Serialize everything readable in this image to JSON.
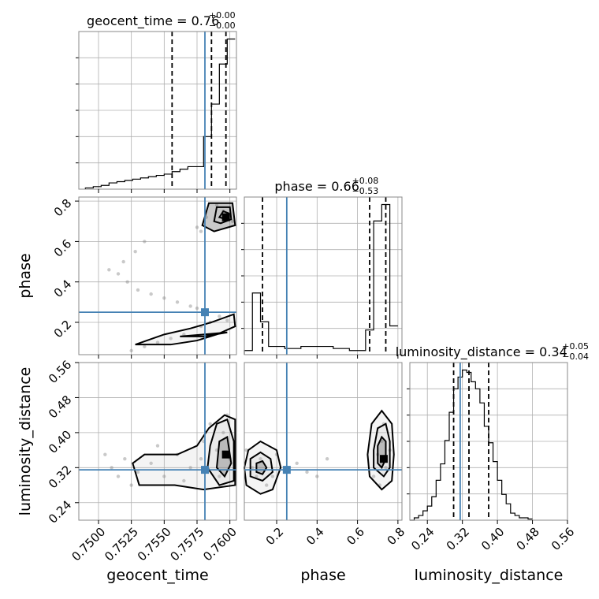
{
  "chart_data": {
    "type": "corner",
    "parameters": [
      "geocent_time",
      "phase",
      "luminosity_distance"
    ],
    "truths": [
      0.7581,
      0.25,
      0.315
    ],
    "truth_color": "#4682b4",
    "titles": [
      {
        "param": "geocent_time",
        "prefix": "geocent_time = 0.76",
        "plus": "+0.00",
        "minus": "−0.00"
      },
      {
        "param": "phase",
        "prefix": "phase = 0.66",
        "plus": "+0.08",
        "minus": "−0.53"
      },
      {
        "param": "luminosity_distance",
        "prefix": "luminosity_distance = 0.34",
        "plus": "+0.05",
        "minus": "−0.04"
      }
    ],
    "axes": {
      "geocent_time": {
        "range": [
          0.7485,
          0.7605
        ],
        "ticks": [
          "0.7500",
          "0.7525",
          "0.7550",
          "0.7575",
          "0.7600"
        ],
        "tick_values": [
          0.75,
          0.7525,
          0.755,
          0.7575,
          0.76
        ],
        "label": "geocent_time"
      },
      "phase": {
        "range": [
          0.04,
          0.82
        ],
        "ticks": [
          "0.2",
          "0.4",
          "0.6",
          "0.8"
        ],
        "tick_values": [
          0.2,
          0.4,
          0.6,
          0.8
        ],
        "label": "phase"
      },
      "luminosity_distance": {
        "range": [
          0.2,
          0.56
        ],
        "ticks": [
          "0.24",
          "0.32",
          "0.40",
          "0.48",
          "0.56"
        ],
        "tick_values": [
          0.24,
          0.32,
          0.4,
          0.48,
          0.56
        ],
        "label": "luminosity_distance"
      }
    },
    "histograms": {
      "geocent_time": {
        "edges": [
          0.749,
          0.7496,
          0.7502,
          0.7508,
          0.7514,
          0.752,
          0.7526,
          0.7532,
          0.7538,
          0.7544,
          0.755,
          0.7556,
          0.7562,
          0.7568,
          0.7574,
          0.758,
          0.7586,
          0.7592,
          0.7598,
          0.7604
        ],
        "counts": [
          0.5,
          1,
          1.5,
          2.5,
          3,
          3.5,
          4,
          4.5,
          5,
          5.5,
          6,
          7,
          8,
          9,
          9,
          21,
          34,
          50,
          60
        ],
        "quantiles": [
          0.7556,
          0.7586,
          0.7597
        ]
      },
      "phase": {
        "edges": [
          0.04,
          0.08,
          0.12,
          0.16,
          0.2,
          0.24,
          0.28,
          0.32,
          0.36,
          0.4,
          0.44,
          0.48,
          0.52,
          0.56,
          0.6,
          0.64,
          0.68,
          0.72,
          0.76,
          0.8
        ],
        "counts": [
          2,
          30,
          16,
          4,
          4,
          3,
          3,
          4,
          4,
          4,
          4,
          3,
          3,
          2,
          2,
          12,
          65,
          73,
          14
        ],
        "quantiles": [
          0.13,
          0.66,
          0.74
        ]
      },
      "luminosity_distance": {
        "edges": [
          0.2,
          0.21,
          0.22,
          0.23,
          0.24,
          0.25,
          0.26,
          0.27,
          0.28,
          0.29,
          0.3,
          0.31,
          0.32,
          0.33,
          0.34,
          0.35,
          0.36,
          0.37,
          0.38,
          0.39,
          0.4,
          0.41,
          0.42,
          0.43,
          0.44,
          0.45,
          0.46,
          0.47,
          0.48
        ],
        "counts": [
          0,
          1,
          2,
          4,
          6,
          10,
          17,
          24,
          34,
          46,
          56,
          61,
          64,
          63,
          59,
          56,
          50,
          40,
          33,
          25,
          17,
          11,
          7,
          3,
          2,
          1,
          1,
          0.5
        ],
        "quantiles": [
          0.3,
          0.335,
          0.38
        ]
      }
    },
    "joint": [
      {
        "x": "geocent_time",
        "y": "phase",
        "points": [
          [
            0.7515,
            0.44
          ],
          [
            0.7508,
            0.46
          ],
          [
            0.7522,
            0.4
          ],
          [
            0.753,
            0.36
          ],
          [
            0.754,
            0.34
          ],
          [
            0.755,
            0.32
          ],
          [
            0.756,
            0.3
          ],
          [
            0.757,
            0.28
          ],
          [
            0.7575,
            0.27
          ],
          [
            0.7535,
            0.08
          ],
          [
            0.7545,
            0.1
          ],
          [
            0.7555,
            0.12
          ],
          [
            0.7565,
            0.14
          ],
          [
            0.7578,
            0.18
          ],
          [
            0.7585,
            0.2
          ],
          [
            0.7578,
            0.65
          ],
          [
            0.7575,
            0.67
          ],
          [
            0.7582,
            0.72
          ],
          [
            0.759,
            0.78
          ],
          [
            0.7595,
            0.75
          ],
          [
            0.7598,
            0.72
          ],
          [
            0.7602,
            0.7
          ],
          [
            0.7592,
            0.23
          ],
          [
            0.7598,
            0.21
          ],
          [
            0.7525,
            0.06
          ],
          [
            0.7519,
            0.5
          ],
          [
            0.7528,
            0.55
          ],
          [
            0.7535,
            0.6
          ]
        ],
        "contours": [
          [
            [
              0.7528,
              0.09
            ],
            [
              0.755,
              0.14
            ],
            [
              0.757,
              0.17
            ],
            [
              0.7586,
              0.2
            ],
            [
              0.7603,
              0.24
            ],
            [
              0.7604,
              0.18
            ],
            [
              0.759,
              0.14
            ],
            [
              0.7575,
              0.11
            ],
            [
              0.7555,
              0.09
            ],
            [
              0.7528,
              0.09
            ]
          ],
          [
            [
              0.7562,
              0.13
            ],
            [
              0.758,
              0.14
            ],
            [
              0.7598,
              0.15
            ],
            [
              0.758,
              0.13
            ],
            [
              0.7562,
              0.13
            ]
          ],
          [
            [
              0.7579,
              0.68
            ],
            [
              0.7584,
              0.79
            ],
            [
              0.7602,
              0.79
            ],
            [
              0.7604,
              0.68
            ],
            [
              0.7588,
              0.65
            ],
            [
              0.7579,
              0.68
            ]
          ],
          [
            [
              0.7588,
              0.7
            ],
            [
              0.759,
              0.77
            ],
            [
              0.76,
              0.77
            ],
            [
              0.7601,
              0.71
            ],
            [
              0.7593,
              0.69
            ],
            [
              0.7588,
              0.7
            ]
          ],
          [
            [
              0.7592,
              0.72
            ],
            [
              0.7595,
              0.75
            ],
            [
              0.7599,
              0.74
            ],
            [
              0.7597,
              0.71
            ],
            [
              0.7592,
              0.72
            ]
          ]
        ],
        "peak": [
          [
            0.7597,
            0.72
          ]
        ]
      },
      {
        "x": "geocent_time",
        "y": "luminosity_distance",
        "points": [
          [
            0.751,
            0.32
          ],
          [
            0.7515,
            0.3
          ],
          [
            0.752,
            0.34
          ],
          [
            0.753,
            0.31
          ],
          [
            0.754,
            0.33
          ],
          [
            0.755,
            0.3
          ],
          [
            0.756,
            0.35
          ],
          [
            0.757,
            0.32
          ],
          [
            0.758,
            0.38
          ],
          [
            0.7585,
            0.42
          ],
          [
            0.759,
            0.36
          ],
          [
            0.7595,
            0.4
          ],
          [
            0.76,
            0.34
          ],
          [
            0.7598,
            0.44
          ],
          [
            0.7592,
            0.3
          ],
          [
            0.7505,
            0.35
          ],
          [
            0.7525,
            0.28
          ],
          [
            0.7545,
            0.37
          ],
          [
            0.7565,
            0.29
          ],
          [
            0.7578,
            0.34
          ]
        ],
        "contours": [
          [
            [
              0.7531,
              0.28
            ],
            [
              0.7526,
              0.33
            ],
            [
              0.7535,
              0.35
            ],
            [
              0.756,
              0.35
            ],
            [
              0.7575,
              0.37
            ],
            [
              0.7584,
              0.41
            ],
            [
              0.7596,
              0.44
            ],
            [
              0.7604,
              0.43
            ],
            [
              0.7604,
              0.28
            ],
            [
              0.758,
              0.27
            ],
            [
              0.7558,
              0.28
            ],
            [
              0.7531,
              0.28
            ]
          ],
          [
            [
              0.7583,
              0.32
            ],
            [
              0.7585,
              0.37
            ],
            [
              0.759,
              0.42
            ],
            [
              0.7598,
              0.43
            ],
            [
              0.7603,
              0.38
            ],
            [
              0.7603,
              0.29
            ],
            [
              0.7592,
              0.28
            ],
            [
              0.7583,
              0.32
            ]
          ],
          [
            [
              0.759,
              0.32
            ],
            [
              0.7592,
              0.38
            ],
            [
              0.7598,
              0.39
            ],
            [
              0.7601,
              0.33
            ],
            [
              0.7596,
              0.3
            ],
            [
              0.759,
              0.32
            ]
          ]
        ],
        "peak": [
          [
            0.7597,
            0.35
          ]
        ]
      },
      {
        "x": "phase",
        "y": "luminosity_distance",
        "points": [
          [
            0.1,
            0.3
          ],
          [
            0.12,
            0.34
          ],
          [
            0.08,
            0.32
          ],
          [
            0.15,
            0.28
          ],
          [
            0.2,
            0.35
          ],
          [
            0.3,
            0.33
          ],
          [
            0.35,
            0.31
          ],
          [
            0.4,
            0.3
          ],
          [
            0.45,
            0.34
          ],
          [
            0.7,
            0.35
          ],
          [
            0.72,
            0.38
          ],
          [
            0.74,
            0.32
          ],
          [
            0.68,
            0.3
          ],
          [
            0.76,
            0.36
          ],
          [
            0.73,
            0.42
          ],
          [
            0.71,
            0.28
          ],
          [
            0.05,
            0.36
          ],
          [
            0.18,
            0.3
          ]
        ],
        "contours": [
          [
            [
              0.05,
              0.28
            ],
            [
              0.04,
              0.32
            ],
            [
              0.06,
              0.36
            ],
            [
              0.12,
              0.38
            ],
            [
              0.2,
              0.36
            ],
            [
              0.22,
              0.32
            ],
            [
              0.18,
              0.27
            ],
            [
              0.12,
              0.26
            ],
            [
              0.05,
              0.28
            ]
          ],
          [
            [
              0.07,
              0.3
            ],
            [
              0.07,
              0.34
            ],
            [
              0.12,
              0.355
            ],
            [
              0.17,
              0.34
            ],
            [
              0.18,
              0.31
            ],
            [
              0.13,
              0.29
            ],
            [
              0.07,
              0.3
            ]
          ],
          [
            [
              0.1,
              0.31
            ],
            [
              0.1,
              0.33
            ],
            [
              0.13,
              0.335
            ],
            [
              0.15,
              0.32
            ],
            [
              0.13,
              0.305
            ],
            [
              0.1,
              0.31
            ]
          ],
          [
            [
              0.66,
              0.3
            ],
            [
              0.65,
              0.35
            ],
            [
              0.67,
              0.42
            ],
            [
              0.72,
              0.45
            ],
            [
              0.77,
              0.42
            ],
            [
              0.78,
              0.35
            ],
            [
              0.77,
              0.29
            ],
            [
              0.72,
              0.27
            ],
            [
              0.66,
              0.3
            ]
          ],
          [
            [
              0.68,
              0.32
            ],
            [
              0.68,
              0.36
            ],
            [
              0.7,
              0.41
            ],
            [
              0.74,
              0.42
            ],
            [
              0.76,
              0.38
            ],
            [
              0.76,
              0.32
            ],
            [
              0.73,
              0.3
            ],
            [
              0.68,
              0.32
            ]
          ],
          [
            [
              0.7,
              0.33
            ],
            [
              0.7,
              0.37
            ],
            [
              0.72,
              0.39
            ],
            [
              0.74,
              0.38
            ],
            [
              0.74,
              0.34
            ],
            [
              0.72,
              0.32
            ],
            [
              0.7,
              0.33
            ]
          ]
        ],
        "peak": [
          [
            0.73,
            0.34
          ]
        ]
      }
    ],
    "grid": true
  }
}
